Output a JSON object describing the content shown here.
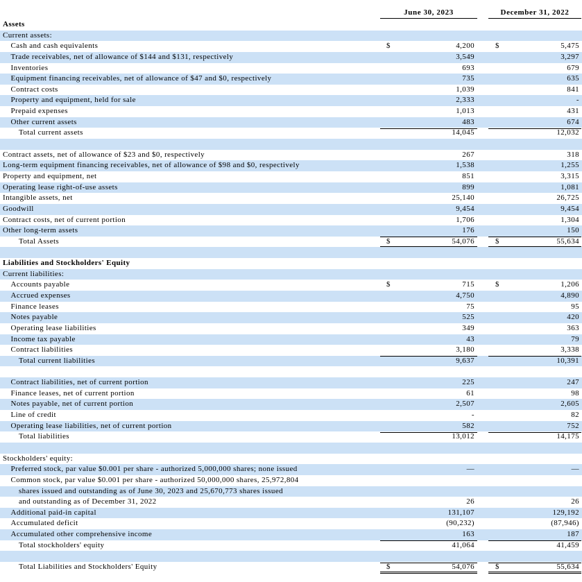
{
  "header": {
    "col1": "June 30, 2023",
    "col2": "December 31, 2022"
  },
  "sections": [
    {
      "rows": [
        {
          "label": "Assets",
          "indent": 0,
          "bold": true
        },
        {
          "label": "Current assets:",
          "indent": 0
        },
        {
          "label": "Cash and cash equivalents",
          "indent": 1,
          "cur1": "$",
          "value1": "4,200",
          "cur2": "$",
          "value2": "5,475"
        },
        {
          "label": "Trade receivables, net of allowance of $144 and $131, respectively",
          "indent": 1,
          "value1": "3,549",
          "value2": "3,297"
        },
        {
          "label": "Inventories",
          "indent": 1,
          "value1": "693",
          "value2": "679"
        },
        {
          "label": "Equipment financing receivables, net of allowance of $47 and $0, respectively",
          "indent": 1,
          "value1": "735",
          "value2": "635"
        },
        {
          "label": "Contract costs",
          "indent": 1,
          "value1": "1,039",
          "value2": "841"
        },
        {
          "label": "Property and equipment, held for sale",
          "indent": 1,
          "value1": "2,333",
          "value2": "-"
        },
        {
          "label": "Prepaid expenses",
          "indent": 1,
          "value1": "1,013",
          "value2": "431"
        },
        {
          "label": "Other current assets",
          "indent": 1,
          "value1": "483",
          "value2": "674"
        },
        {
          "label": "Total current assets",
          "indent": 2,
          "value1": "14,045",
          "value2": "12,032",
          "rule": "single"
        }
      ]
    },
    {
      "rows": [
        {
          "label": "Contract assets, net of allowance of $23 and $0, respectively",
          "indent": 0,
          "value1": "267",
          "value2": "318"
        },
        {
          "label": "Long-term equipment financing receivables, net of allowance of $98 and $0, respectively",
          "indent": 0,
          "value1": "1,538",
          "value2": "1,255"
        },
        {
          "label": "Property and equipment, net",
          "indent": 0,
          "value1": "851",
          "value2": "3,315"
        },
        {
          "label": "Operating lease right-of-use assets",
          "indent": 0,
          "value1": "899",
          "value2": "1,081"
        },
        {
          "label": "Intangible assets, net",
          "indent": 0,
          "value1": "25,140",
          "value2": "26,725"
        },
        {
          "label": "Goodwill",
          "indent": 0,
          "value1": "9,454",
          "value2": "9,454"
        },
        {
          "label": "Contract costs, net of current portion",
          "indent": 0,
          "value1": "1,706",
          "value2": "1,304"
        },
        {
          "label": "Other long-term assets",
          "indent": 0,
          "value1": "176",
          "value2": "150"
        },
        {
          "label": "Total Assets",
          "indent": 2,
          "cur1": "$",
          "value1": "54,076",
          "cur2": "$",
          "value2": "55,634",
          "rule": "double"
        }
      ]
    },
    {
      "rows": [
        {
          "label": "Liabilities and Stockholders' Equity",
          "indent": 0,
          "bold": true
        },
        {
          "label": "Current liabilities:",
          "indent": 0
        },
        {
          "label": "Accounts payable",
          "indent": 1,
          "cur1": "$",
          "value1": "715",
          "cur2": "$",
          "value2": "1,206"
        },
        {
          "label": "Accrued expenses",
          "indent": 1,
          "value1": "4,750",
          "value2": "4,890"
        },
        {
          "label": "Finance leases",
          "indent": 1,
          "value1": "75",
          "value2": "95"
        },
        {
          "label": "Notes payable",
          "indent": 1,
          "value1": "525",
          "value2": "420"
        },
        {
          "label": "Operating lease liabilities",
          "indent": 1,
          "value1": "349",
          "value2": "363"
        },
        {
          "label": "Income tax payable",
          "indent": 1,
          "value1": "43",
          "value2": "79"
        },
        {
          "label": "Contract liabilities",
          "indent": 1,
          "value1": "3,180",
          "value2": "3,338"
        },
        {
          "label": "Total current liabilities",
          "indent": 2,
          "value1": "9,637",
          "value2": "10,391",
          "rule": "single"
        }
      ]
    },
    {
      "rows": [
        {
          "label": "Contract liabilities, net of current portion",
          "indent": 1,
          "value1": "225",
          "value2": "247"
        },
        {
          "label": "Finance leases, net of current portion",
          "indent": 1,
          "value1": "61",
          "value2": "98"
        },
        {
          "label": "Notes payable, net of current portion",
          "indent": 1,
          "value1": "2,507",
          "value2": "2,605"
        },
        {
          "label": "Line of credit",
          "indent": 1,
          "value1": "-",
          "value2": "82"
        },
        {
          "label": "Operating lease liabilities, net of current portion",
          "indent": 1,
          "value1": "582",
          "value2": "752"
        },
        {
          "label": "Total liabilities",
          "indent": 2,
          "value1": "13,012",
          "value2": "14,175",
          "rule": "single"
        }
      ]
    },
    {
      "rows": [
        {
          "label": "Stockholders' equity:",
          "indent": 0
        },
        {
          "label": "Preferred stock, par value $0.001 per share - authorized 5,000,000 shares; none issued",
          "indent": 1,
          "value1": "—",
          "value2": "—"
        },
        {
          "label": "Common stock, par value $0.001 per share - authorized 50,000,000 shares, 25,972,804",
          "indent": 1
        },
        {
          "label": "shares issued and outstanding as of June 30, 2023 and 25,670,773 shares issued",
          "indent": 2
        },
        {
          "label": "and outstanding as of December 31, 2022",
          "indent": 2,
          "value1": "26",
          "value2": "26"
        },
        {
          "label": "Additional paid-in capital",
          "indent": 1,
          "value1": "131,107",
          "value2": "129,192"
        },
        {
          "label": "Accumulated deficit",
          "indent": 1,
          "value1": "(90,232)",
          "value2": "(87,946)"
        },
        {
          "label": "Accumulated other comprehensive income",
          "indent": 1,
          "value1": "163",
          "value2": "187"
        },
        {
          "label": "Total stockholders' equity",
          "indent": 2,
          "value1": "41,064",
          "value2": "41,459",
          "rule": "single"
        }
      ]
    },
    {
      "rows": [
        {
          "label": "Total Liabilities and Stockholders' Equity",
          "indent": 2,
          "cur1": "$",
          "value1": "54,076",
          "cur2": "$",
          "value2": "55,634",
          "rule": "double"
        }
      ]
    }
  ]
}
